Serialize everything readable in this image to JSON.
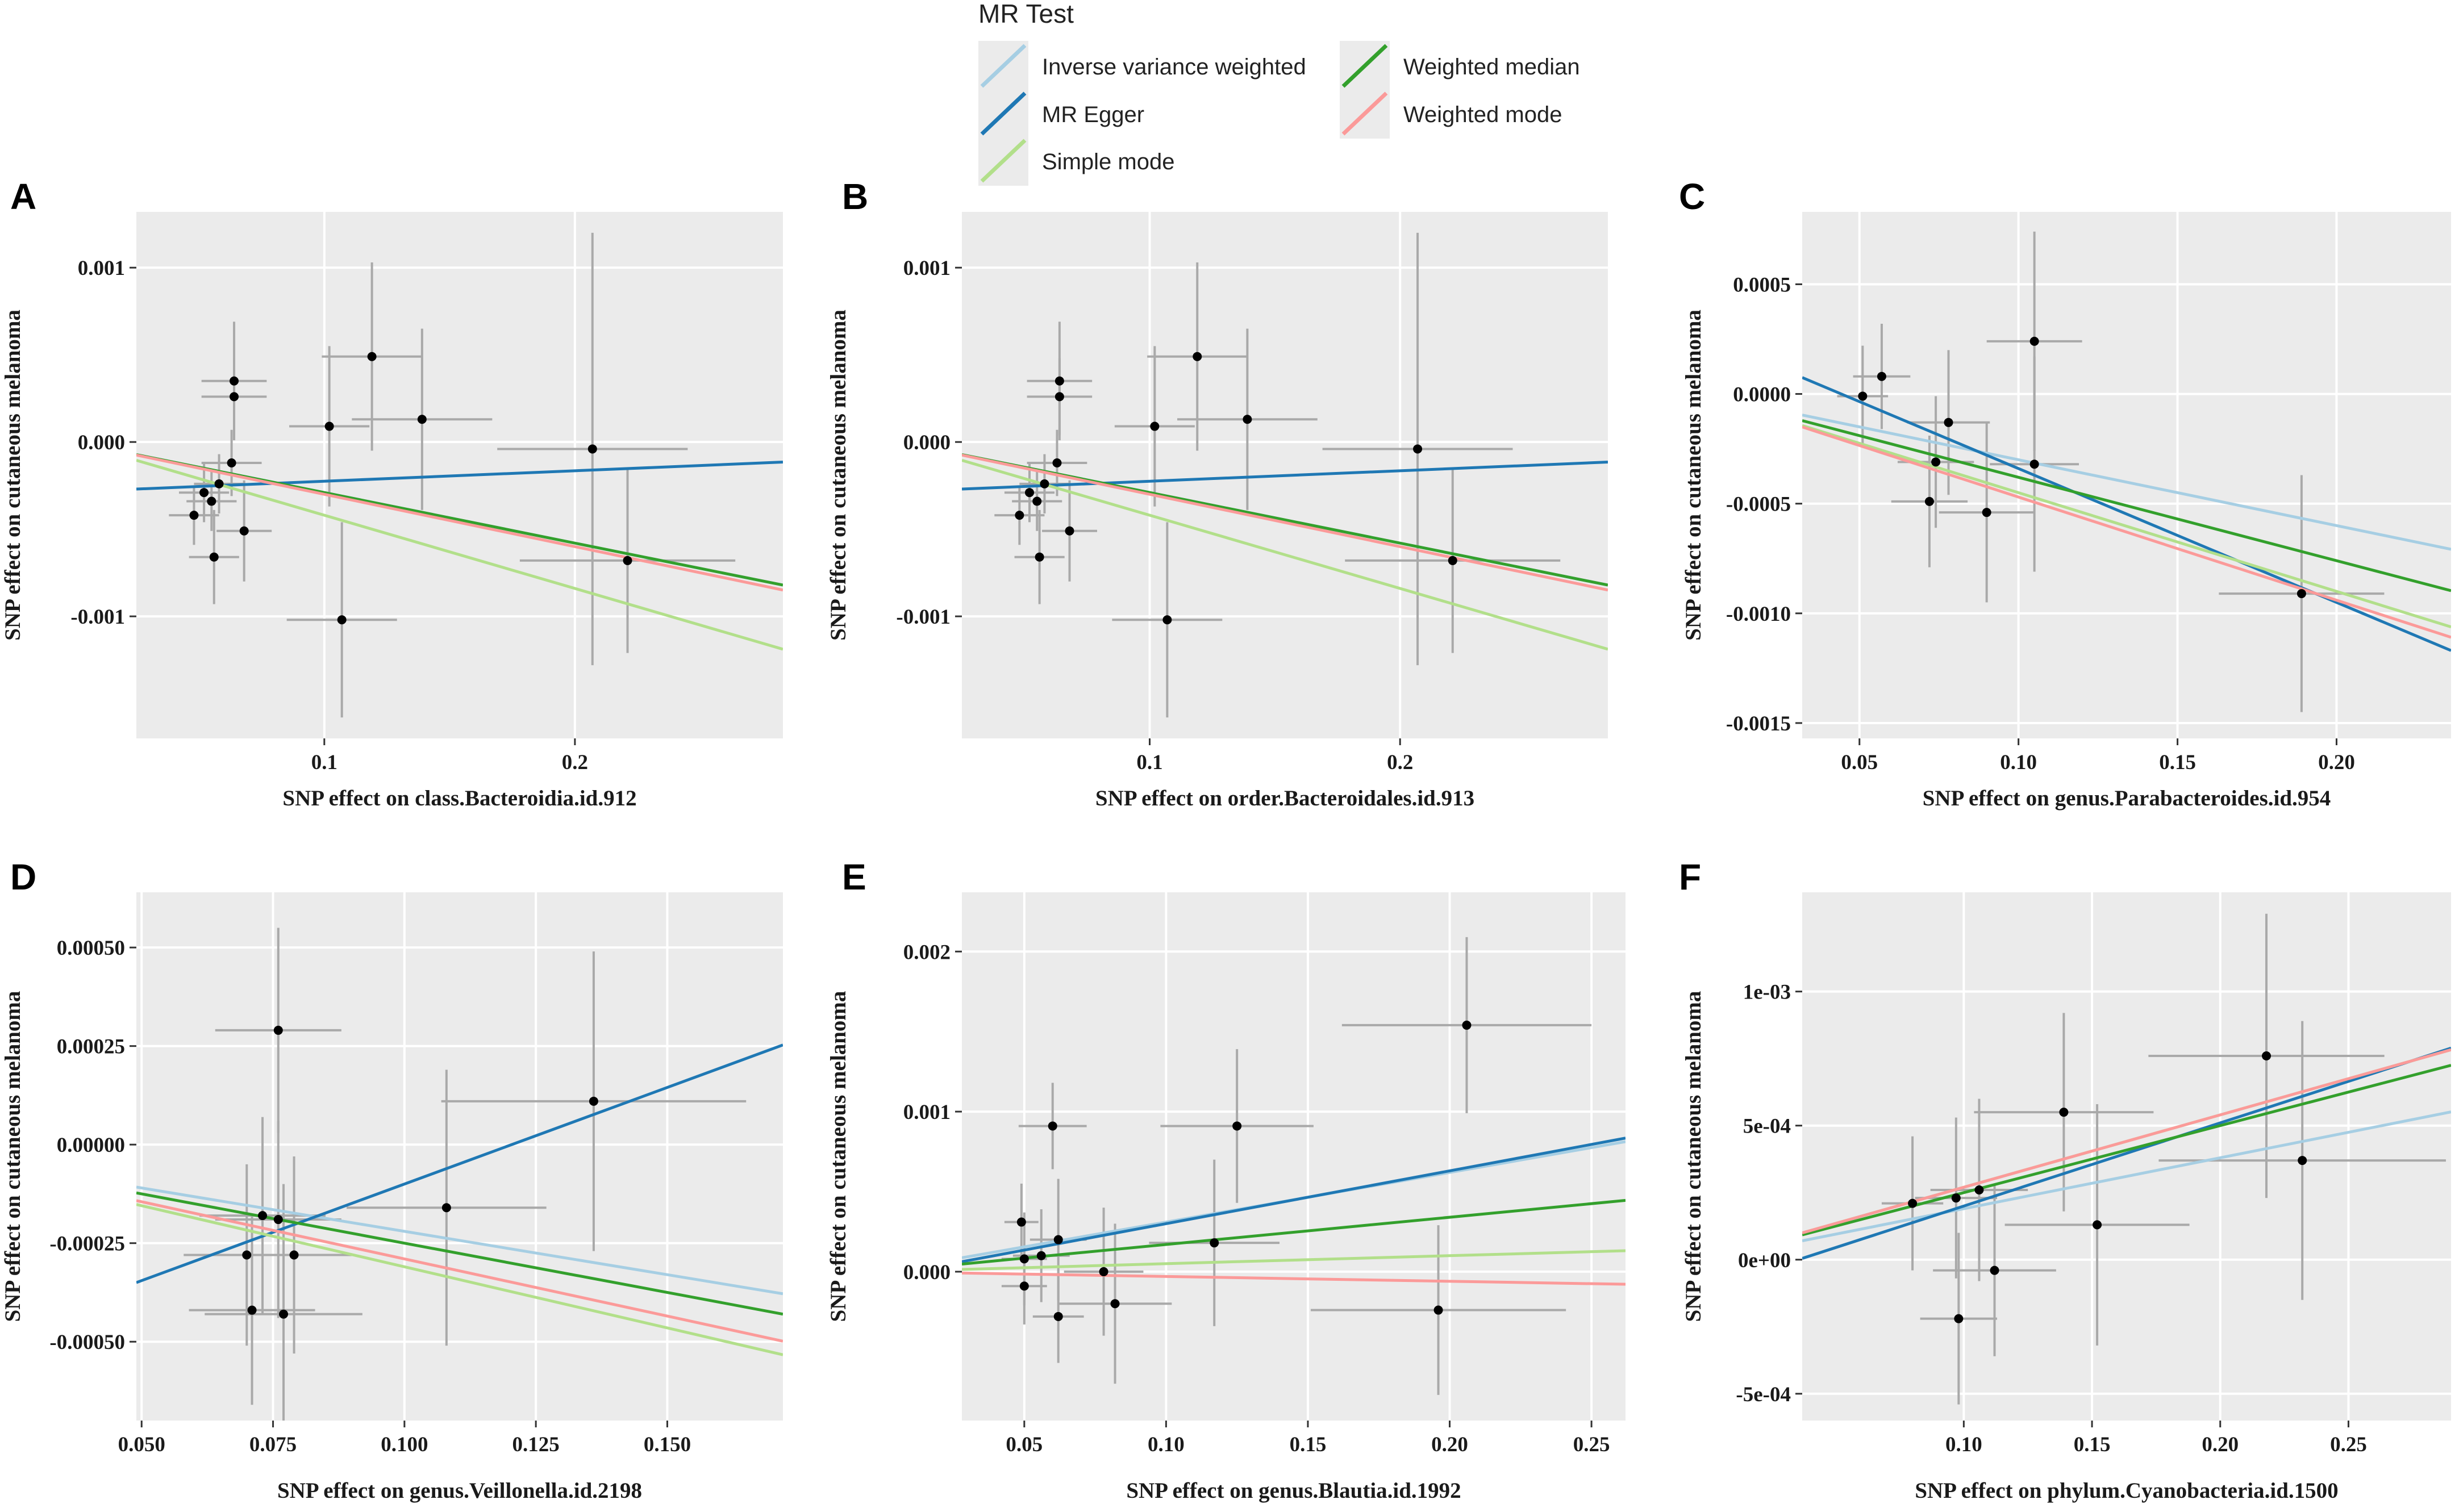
{
  "figure": {
    "legend": {
      "title": "MR Test",
      "entries": [
        {
          "label": "Inverse variance weighted",
          "color": "#a6cee3"
        },
        {
          "label": "MR Egger",
          "color": "#1f78b4"
        },
        {
          "label": "Simple mode",
          "color": "#b2df8a"
        },
        {
          "label": "Weighted median",
          "color": "#33a02c"
        },
        {
          "label": "Weighted mode",
          "color": "#fb9a99"
        }
      ]
    },
    "colors": {
      "panel_bg": "#ebebeb",
      "grid": "#ffffff",
      "point": "#000000",
      "errorbar": "#a9a9a9"
    }
  },
  "chart_data": [
    {
      "panel": "A",
      "type": "scatter",
      "xlabel": "SNP effect on class.Bacteroidia.id.912",
      "ylabel": "SNP effect on cutaneous melanoma",
      "xlim": [
        0.025,
        0.283
      ],
      "ylim": [
        -0.0017,
        0.00132
      ],
      "xticks": [
        0.1,
        0.2
      ],
      "xtick_labels": [
        "0.1",
        "0.2"
      ],
      "yticks": [
        0.001,
        0.0,
        -0.001
      ],
      "ytick_labels": [
        "0.001",
        "0.000",
        "-0.001"
      ],
      "points": [
        {
          "x": 0.048,
          "y": -0.00042,
          "xerr": 0.01,
          "yerr": 0.00017
        },
        {
          "x": 0.052,
          "y": -0.00029,
          "xerr": 0.01,
          "yerr": 0.00017
        },
        {
          "x": 0.055,
          "y": -0.00034,
          "xerr": 0.01,
          "yerr": 0.00017
        },
        {
          "x": 0.056,
          "y": -0.00066,
          "xerr": 0.01,
          "yerr": 0.00027
        },
        {
          "x": 0.058,
          "y": -0.00024,
          "xerr": 0.01,
          "yerr": 0.00017
        },
        {
          "x": 0.063,
          "y": -0.00012,
          "xerr": 0.012,
          "yerr": 0.00019
        },
        {
          "x": 0.064,
          "y": 0.00026,
          "xerr": 0.013,
          "yerr": 0.00022
        },
        {
          "x": 0.064,
          "y": 0.00035,
          "xerr": 0.013,
          "yerr": 0.00034
        },
        {
          "x": 0.068,
          "y": -0.00051,
          "xerr": 0.011,
          "yerr": 0.00029
        },
        {
          "x": 0.102,
          "y": 9e-05,
          "xerr": 0.016,
          "yerr": 0.00046
        },
        {
          "x": 0.107,
          "y": -0.00102,
          "xerr": 0.022,
          "yerr": 0.00056
        },
        {
          "x": 0.119,
          "y": 0.00049,
          "xerr": 0.02,
          "yerr": 0.00054
        },
        {
          "x": 0.139,
          "y": 0.00013,
          "xerr": 0.028,
          "yerr": 0.00052
        },
        {
          "x": 0.207,
          "y": -4e-05,
          "xerr": 0.038,
          "yerr": 0.00124
        },
        {
          "x": 0.221,
          "y": -0.00068,
          "xerr": 0.043,
          "yerr": 0.00053
        }
      ],
      "lines": [
        {
          "name": "Inverse variance weighted",
          "slope": -0.0029,
          "intercept": 0.0
        },
        {
          "name": "MR Egger",
          "slope": 0.0006,
          "intercept": -0.000285
        },
        {
          "name": "Simple mode",
          "slope": -0.0042,
          "intercept": 0.0
        },
        {
          "name": "Weighted median",
          "slope": -0.0029,
          "intercept": 0.0
        },
        {
          "name": "Weighted mode",
          "slope": -0.003,
          "intercept": 0.0
        }
      ]
    },
    {
      "panel": "B",
      "type": "scatter",
      "xlabel": "SNP effect on order.Bacteroidales.id.913",
      "ylabel": "SNP effect on cutaneous melanoma",
      "xlim": [
        0.025,
        0.283
      ],
      "ylim": [
        -0.0017,
        0.00132
      ],
      "xticks": [
        0.1,
        0.2
      ],
      "xtick_labels": [
        "0.1",
        "0.2"
      ],
      "yticks": [
        0.001,
        0.0,
        -0.001
      ],
      "ytick_labels": [
        "0.001",
        "0.000",
        "-0.001"
      ],
      "points": [
        {
          "x": 0.048,
          "y": -0.00042,
          "xerr": 0.01,
          "yerr": 0.00017
        },
        {
          "x": 0.052,
          "y": -0.00029,
          "xerr": 0.01,
          "yerr": 0.00017
        },
        {
          "x": 0.055,
          "y": -0.00034,
          "xerr": 0.01,
          "yerr": 0.00017
        },
        {
          "x": 0.056,
          "y": -0.00066,
          "xerr": 0.01,
          "yerr": 0.00027
        },
        {
          "x": 0.058,
          "y": -0.00024,
          "xerr": 0.01,
          "yerr": 0.00017
        },
        {
          "x": 0.063,
          "y": -0.00012,
          "xerr": 0.012,
          "yerr": 0.00019
        },
        {
          "x": 0.064,
          "y": 0.00026,
          "xerr": 0.013,
          "yerr": 0.00022
        },
        {
          "x": 0.064,
          "y": 0.00035,
          "xerr": 0.013,
          "yerr": 0.00034
        },
        {
          "x": 0.068,
          "y": -0.00051,
          "xerr": 0.011,
          "yerr": 0.00029
        },
        {
          "x": 0.102,
          "y": 9e-05,
          "xerr": 0.016,
          "yerr": 0.00046
        },
        {
          "x": 0.107,
          "y": -0.00102,
          "xerr": 0.022,
          "yerr": 0.00056
        },
        {
          "x": 0.119,
          "y": 0.00049,
          "xerr": 0.02,
          "yerr": 0.00054
        },
        {
          "x": 0.139,
          "y": 0.00013,
          "xerr": 0.028,
          "yerr": 0.00052
        },
        {
          "x": 0.207,
          "y": -4e-05,
          "xerr": 0.038,
          "yerr": 0.00124
        },
        {
          "x": 0.221,
          "y": -0.00068,
          "xerr": 0.043,
          "yerr": 0.00053
        }
      ],
      "lines": [
        {
          "name": "Inverse variance weighted",
          "slope": -0.0029,
          "intercept": 0.0
        },
        {
          "name": "MR Egger",
          "slope": 0.0006,
          "intercept": -0.000285
        },
        {
          "name": "Simple mode",
          "slope": -0.0042,
          "intercept": 0.0
        },
        {
          "name": "Weighted median",
          "slope": -0.0029,
          "intercept": 0.0
        },
        {
          "name": "Weighted mode",
          "slope": -0.003,
          "intercept": 0.0
        }
      ]
    },
    {
      "panel": "C",
      "type": "scatter",
      "xlabel": "SNP effect on genus.Parabacteroides.id.954",
      "ylabel": "SNP effect on cutaneous melanoma",
      "xlim": [
        0.032,
        0.236
      ],
      "ylim": [
        -0.00157,
        0.00083
      ],
      "xticks": [
        0.05,
        0.1,
        0.15,
        0.2
      ],
      "xtick_labels": [
        "0.05",
        "0.10",
        "0.15",
        "0.20"
      ],
      "yticks": [
        0.0005,
        0.0,
        -0.0005,
        -0.001,
        -0.0015
      ],
      "ytick_labels": [
        "0.0005",
        "0.0000",
        "-0.0005",
        "-0.0010",
        "-0.0015"
      ],
      "points": [
        {
          "x": 0.051,
          "y": -1e-05,
          "xerr": 0.008,
          "yerr": 0.00023
        },
        {
          "x": 0.057,
          "y": 8e-05,
          "xerr": 0.009,
          "yerr": 0.00024
        },
        {
          "x": 0.072,
          "y": -0.00049,
          "xerr": 0.012,
          "yerr": 0.0003
        },
        {
          "x": 0.074,
          "y": -0.00031,
          "xerr": 0.012,
          "yerr": 0.0003
        },
        {
          "x": 0.078,
          "y": -0.00013,
          "xerr": 0.013,
          "yerr": 0.00033
        },
        {
          "x": 0.09,
          "y": -0.00054,
          "xerr": 0.015,
          "yerr": 0.00041
        },
        {
          "x": 0.105,
          "y": 0.00024,
          "xerr": 0.015,
          "yerr": 0.0005
        },
        {
          "x": 0.105,
          "y": -0.00032,
          "xerr": 0.014,
          "yerr": 0.00049
        },
        {
          "x": 0.189,
          "y": -0.00091,
          "xerr": 0.026,
          "yerr": 0.00054
        }
      ],
      "lines": [
        {
          "name": "Inverse variance weighted",
          "slope": -0.003,
          "intercept": 0.0
        },
        {
          "name": "MR Egger",
          "slope": -0.0061,
          "intercept": 0.00027
        },
        {
          "name": "Simple mode",
          "slope": -0.0045,
          "intercept": 0.0
        },
        {
          "name": "Weighted median",
          "slope": -0.0038,
          "intercept": 0.0
        },
        {
          "name": "Weighted mode",
          "slope": -0.0047,
          "intercept": 0.0
        }
      ]
    },
    {
      "panel": "D",
      "type": "scatter",
      "xlabel": "SNP effect on genus.Veillonella.id.2198",
      "ylabel": "SNP effect on cutaneous melanoma",
      "xlim": [
        0.049,
        0.172
      ],
      "ylim": [
        -0.0007,
        0.00064
      ],
      "xticks": [
        0.05,
        0.075,
        0.1,
        0.125,
        0.15
      ],
      "xtick_labels": [
        "0.050",
        "0.075",
        "0.100",
        "0.125",
        "0.150"
      ],
      "yticks": [
        0.0005,
        0.00025,
        0.0,
        -0.00025,
        -0.0005
      ],
      "ytick_labels": [
        "0.00050",
        "0.00025",
        "0.00000",
        "-0.00025",
        "-0.00050"
      ],
      "points": [
        {
          "x": 0.07,
          "y": -0.00028,
          "xerr": 0.012,
          "yerr": 0.00023
        },
        {
          "x": 0.071,
          "y": -0.00042,
          "xerr": 0.012,
          "yerr": 0.00024
        },
        {
          "x": 0.073,
          "y": -0.00018,
          "xerr": 0.012,
          "yerr": 0.00025
        },
        {
          "x": 0.076,
          "y": 0.00029,
          "xerr": 0.012,
          "yerr": 0.00026
        },
        {
          "x": 0.076,
          "y": -0.00019,
          "xerr": 0.012,
          "yerr": 0.00025
        },
        {
          "x": 0.077,
          "y": -0.00043,
          "xerr": 0.015,
          "yerr": 0.00033
        },
        {
          "x": 0.079,
          "y": -0.00028,
          "xerr": 0.011,
          "yerr": 0.00025
        },
        {
          "x": 0.108,
          "y": -0.00016,
          "xerr": 0.019,
          "yerr": 0.00035
        },
        {
          "x": 0.136,
          "y": 0.00011,
          "xerr": 0.029,
          "yerr": 0.00038
        }
      ],
      "lines": [
        {
          "name": "Inverse variance weighted",
          "slope": -0.0022,
          "intercept": 0.0
        },
        {
          "name": "MR Egger",
          "slope": 0.0049,
          "intercept": -0.00059
        },
        {
          "name": "Simple mode",
          "slope": -0.0031,
          "intercept": 0.0
        },
        {
          "name": "Weighted median",
          "slope": -0.0025,
          "intercept": 0.0
        },
        {
          "name": "Weighted mode",
          "slope": -0.0029,
          "intercept": 0.0
        }
      ]
    },
    {
      "panel": "E",
      "type": "scatter",
      "xlabel": "SNP effect on genus.Blautia.id.1992",
      "ylabel": "SNP effect on cutaneous melanoma",
      "xlim": [
        0.028,
        0.262
      ],
      "ylim": [
        -0.00093,
        0.00237
      ],
      "xticks": [
        0.05,
        0.1,
        0.15,
        0.2,
        0.25
      ],
      "xtick_labels": [
        "0.05",
        "0.10",
        "0.15",
        "0.20",
        "0.25"
      ],
      "yticks": [
        0.002,
        0.001,
        0.0
      ],
      "ytick_labels": [
        "0.002",
        "0.001",
        "0.000"
      ],
      "points": [
        {
          "x": 0.049,
          "y": 0.00031,
          "xerr": 0.006,
          "yerr": 0.00024
        },
        {
          "x": 0.05,
          "y": 8e-05,
          "xerr": 0.008,
          "yerr": 0.00029
        },
        {
          "x": 0.05,
          "y": -9e-05,
          "xerr": 0.008,
          "yerr": 0.00024
        },
        {
          "x": 0.056,
          "y": 0.0001,
          "xerr": 0.01,
          "yerr": 0.00029
        },
        {
          "x": 0.06,
          "y": 0.00091,
          "xerr": 0.012,
          "yerr": 0.00027
        },
        {
          "x": 0.062,
          "y": 0.0002,
          "xerr": 0.01,
          "yerr": 0.00038
        },
        {
          "x": 0.062,
          "y": -0.00028,
          "xerr": 0.009,
          "yerr": 0.00029
        },
        {
          "x": 0.078,
          "y": 0.0,
          "xerr": 0.014,
          "yerr": 0.0004
        },
        {
          "x": 0.082,
          "y": -0.0002,
          "xerr": 0.02,
          "yerr": 0.0005
        },
        {
          "x": 0.117,
          "y": 0.00018,
          "xerr": 0.023,
          "yerr": 0.00052
        },
        {
          "x": 0.125,
          "y": 0.00091,
          "xerr": 0.027,
          "yerr": 0.00048
        },
        {
          "x": 0.196,
          "y": -0.00024,
          "xerr": 0.045,
          "yerr": 0.00053
        },
        {
          "x": 0.206,
          "y": 0.00154,
          "xerr": 0.044,
          "yerr": 0.00055
        }
      ],
      "lines": [
        {
          "name": "Inverse variance weighted",
          "slope": 0.0031,
          "intercept": 0.0
        },
        {
          "name": "MR Egger",
          "slope": 0.0033,
          "intercept": -3e-05
        },
        {
          "name": "Simple mode",
          "slope": 0.0005,
          "intercept": 0.0
        },
        {
          "name": "Weighted median",
          "slope": 0.0017,
          "intercept": 0.0
        },
        {
          "name": "Weighted mode",
          "slope": -0.0003,
          "intercept": 0.0
        }
      ]
    },
    {
      "panel": "F",
      "type": "scatter",
      "xlabel": "SNP effect on phylum.Cyanobacteria.id.1500",
      "ylabel": "SNP effect on cutaneous melanoma",
      "xlim": [
        0.037,
        0.29
      ],
      "ylim": [
        -0.0006,
        0.00137
      ],
      "xticks": [
        0.1,
        0.15,
        0.2,
        0.25
      ],
      "xtick_labels": [
        "0.10",
        "0.15",
        "0.20",
        "0.25"
      ],
      "yticks": [
        0.001,
        0.0005,
        0.0,
        -0.0005
      ],
      "ytick_labels": [
        "1e-03",
        "5e-04",
        "0e+00",
        "-5e-04"
      ],
      "points": [
        {
          "x": 0.08,
          "y": 0.00021,
          "xerr": 0.012,
          "yerr": 0.00025
        },
        {
          "x": 0.097,
          "y": 0.00023,
          "xerr": 0.016,
          "yerr": 0.0003
        },
        {
          "x": 0.098,
          "y": -0.00022,
          "xerr": 0.015,
          "yerr": 0.00032
        },
        {
          "x": 0.106,
          "y": 0.00026,
          "xerr": 0.019,
          "yerr": 0.00034
        },
        {
          "x": 0.112,
          "y": -4e-05,
          "xerr": 0.024,
          "yerr": 0.00032
        },
        {
          "x": 0.139,
          "y": 0.00055,
          "xerr": 0.035,
          "yerr": 0.00037
        },
        {
          "x": 0.152,
          "y": 0.00013,
          "xerr": 0.036,
          "yerr": 0.00045
        },
        {
          "x": 0.218,
          "y": 0.00076,
          "xerr": 0.046,
          "yerr": 0.00053
        },
        {
          "x": 0.232,
          "y": 0.00037,
          "xerr": 0.056,
          "yerr": 0.00052
        }
      ],
      "lines": [
        {
          "name": "Inverse variance weighted",
          "slope": 0.0019,
          "intercept": 0.0
        },
        {
          "name": "MR Egger",
          "slope": 0.0031,
          "intercept": -0.00011
        },
        {
          "name": "Simple mode",
          "slope": 0.0027,
          "intercept": 0.0
        },
        {
          "name": "Weighted median",
          "slope": 0.0025,
          "intercept": 0.0
        },
        {
          "name": "Weighted mode",
          "slope": 0.0027,
          "intercept": 0.0
        }
      ]
    }
  ]
}
